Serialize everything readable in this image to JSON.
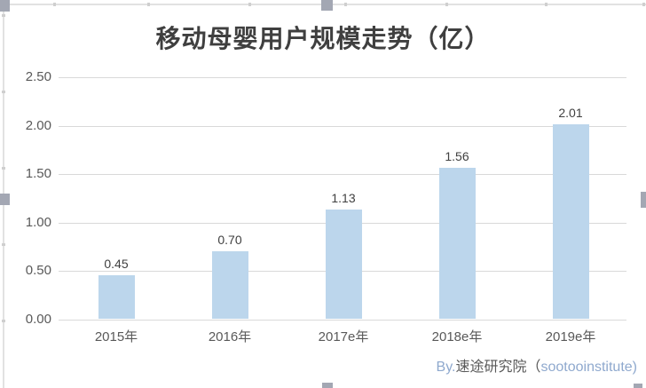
{
  "chart_data": {
    "type": "bar",
    "title": "移动母婴用户规模走势（亿）",
    "categories": [
      "2015年",
      "2016年",
      "2017e年",
      "2018e年",
      "2019e年"
    ],
    "values": [
      0.45,
      0.7,
      1.13,
      1.56,
      2.01
    ],
    "value_labels": [
      "0.45",
      "0.70",
      "1.13",
      "1.56",
      "2.01"
    ],
    "y_ticks": [
      "2.50",
      "2.00",
      "1.50",
      "1.00",
      "0.50",
      "0.00"
    ],
    "ylim": [
      0,
      2.5
    ],
    "xlabel": "",
    "ylabel": "",
    "legend": "none",
    "grid": "horizontal",
    "bar_color": "#bcd6ec"
  },
  "attribution": {
    "by": "By.",
    "org": "速途研究院（",
    "latin": "sootooinstitute)"
  },
  "colors": {
    "bar": "#bcd6ec",
    "gridline": "#d9d9d9",
    "axis_text": "#595959",
    "title_text": "#3f3f3f",
    "data_label": "#404040",
    "attribution_latin": "#8fa9ce",
    "selection_handle": "#a3a7b3"
  }
}
